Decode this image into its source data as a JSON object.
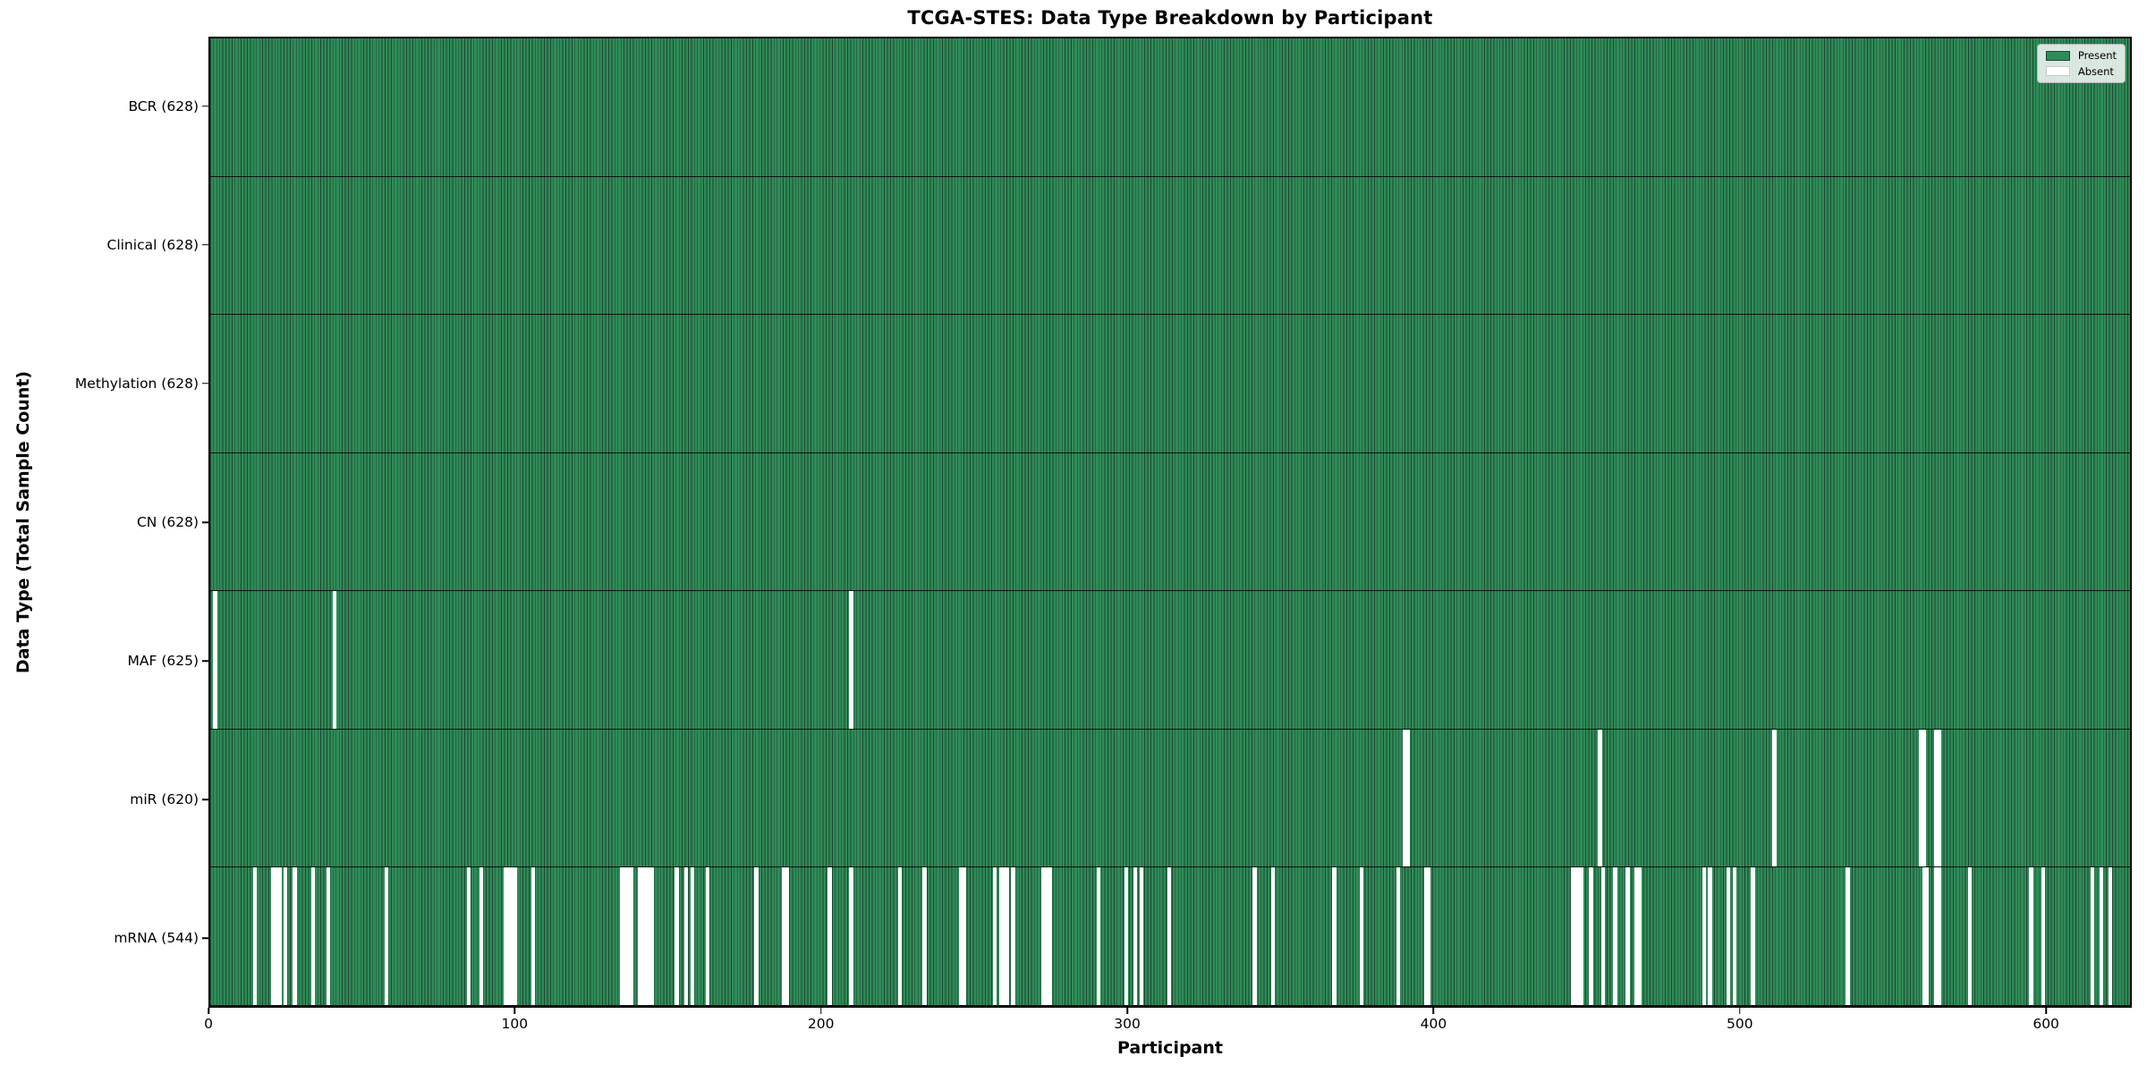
{
  "chart_data": {
    "type": "heatmap",
    "title": "TCGA-STES: Data Type Breakdown by Participant",
    "xlabel": "Participant",
    "ylabel": "Data Type (Total Sample Count)",
    "legend_position": "upper right",
    "grid": false,
    "n_participants": 628,
    "x_ticks": [
      0,
      100,
      200,
      300,
      400,
      500,
      600
    ],
    "xlim": [
      0,
      628
    ],
    "colors": {
      "present": "#2f8b58",
      "absent": "#ffffff",
      "cell_edge": "#1d4731",
      "row_divider": "#111111",
      "spine": "#000000"
    },
    "legend": [
      {
        "label": "Present",
        "color": "#2f8b58"
      },
      {
        "label": "Absent",
        "color": "#ffffff"
      }
    ],
    "rows": [
      {
        "name": "BCR",
        "label": "BCR (628)",
        "present_count": 628,
        "absent_participants": []
      },
      {
        "name": "Clinical",
        "label": "Clinical (628)",
        "present_count": 628,
        "absent_participants": []
      },
      {
        "name": "Methylation",
        "label": "Methylation (628)",
        "present_count": 628,
        "absent_participants": []
      },
      {
        "name": "CN",
        "label": "CN (628)",
        "present_count": 628,
        "absent_participants": []
      },
      {
        "name": "MAF",
        "label": "MAF (625)",
        "present_count": 625,
        "absent_participants": [
          1,
          40,
          209
        ]
      },
      {
        "name": "miR",
        "label": "miR (620)",
        "present_count": 620,
        "absent_participants": [
          390,
          391,
          454,
          511,
          559,
          560,
          564,
          565
        ]
      },
      {
        "name": "mRNA",
        "label": "mRNA (544)",
        "present_count": 544,
        "absent_participants": [
          14,
          20,
          21,
          22,
          24,
          27,
          33,
          38,
          57,
          84,
          88,
          96,
          97,
          98,
          99,
          105,
          134,
          135,
          136,
          137,
          140,
          141,
          142,
          143,
          144,
          152,
          155,
          157,
          162,
          178,
          187,
          188,
          202,
          209,
          225,
          233,
          245,
          246,
          256,
          258,
          259,
          260,
          262,
          272,
          273,
          274,
          290,
          299,
          302,
          304,
          313,
          341,
          347,
          367,
          376,
          388,
          397,
          398,
          445,
          446,
          447,
          448,
          451,
          455,
          459,
          463,
          466,
          467,
          488,
          490,
          496,
          498,
          504,
          535,
          560,
          561,
          564,
          565,
          575,
          595,
          599,
          615,
          618,
          621
        ]
      }
    ]
  }
}
